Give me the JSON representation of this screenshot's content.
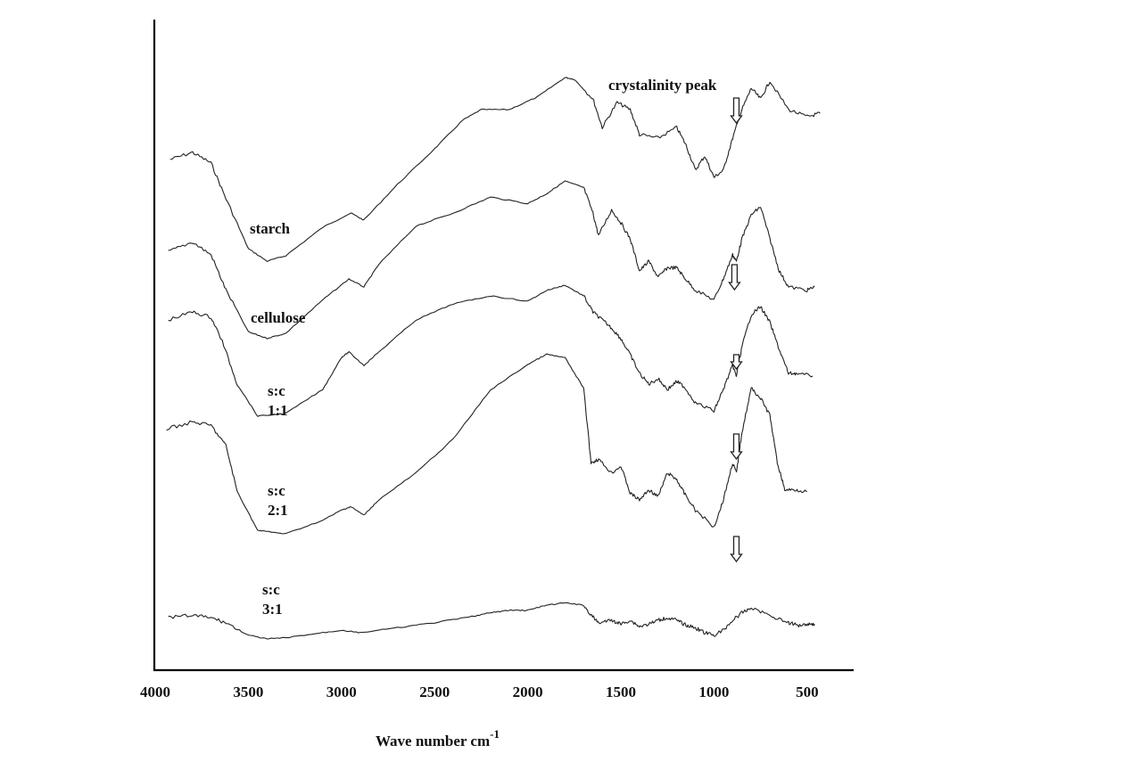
{
  "chart_data": {
    "type": "line",
    "title": "",
    "xlabel": "Wave number cm",
    "xlabel_superscript": "-1",
    "ylabel": "",
    "xlim": [
      4000,
      200
    ],
    "x_ticks": [
      "4000",
      "3500",
      "3000",
      "2500",
      "2000",
      "1500",
      "1000",
      "500"
    ],
    "annotation": "crystalinity peak",
    "series": [
      {
        "name": "starch",
        "label_lines": [
          "starch"
        ],
        "crystallinity_arrow_x": 880,
        "x": [
          3920,
          3800,
          3700,
          3620,
          3500,
          3400,
          3300,
          3100,
          2950,
          2880,
          2700,
          2500,
          2350,
          2250,
          2100,
          1950,
          1800,
          1750,
          1650,
          1600,
          1520,
          1450,
          1400,
          1300,
          1200,
          1150,
          1100,
          1050,
          1000,
          950,
          900,
          850,
          800,
          750,
          700,
          600,
          500,
          430
        ],
        "y": [
          0.72,
          0.76,
          0.7,
          0.5,
          0.22,
          0.15,
          0.18,
          0.34,
          0.42,
          0.38,
          0.58,
          0.78,
          0.94,
          1.0,
          1.0,
          1.07,
          1.18,
          1.17,
          1.06,
          0.9,
          1.04,
          1.0,
          0.86,
          0.84,
          0.9,
          0.8,
          0.66,
          0.74,
          0.62,
          0.66,
          0.84,
          1.0,
          1.12,
          1.06,
          1.16,
          1.0,
          0.96,
          0.98
        ]
      },
      {
        "name": "cellulose",
        "label_lines": [
          "cellulose"
        ],
        "crystallinity_arrow_x": 890,
        "x": [
          3930,
          3800,
          3700,
          3620,
          3500,
          3400,
          3300,
          3100,
          2960,
          2880,
          2800,
          2600,
          2400,
          2200,
          2000,
          1900,
          1800,
          1700,
          1650,
          1620,
          1550,
          1500,
          1450,
          1400,
          1350,
          1300,
          1250,
          1200,
          1160,
          1100,
          1000,
          950,
          900,
          880,
          850,
          800,
          750,
          700,
          650,
          600,
          500,
          460
        ],
        "y": [
          0.72,
          0.78,
          0.7,
          0.48,
          0.22,
          0.18,
          0.21,
          0.42,
          0.55,
          0.5,
          0.64,
          0.88,
          0.96,
          1.06,
          1.02,
          1.08,
          1.16,
          1.12,
          0.96,
          0.82,
          0.98,
          0.9,
          0.8,
          0.6,
          0.66,
          0.56,
          0.62,
          0.62,
          0.56,
          0.48,
          0.42,
          0.55,
          0.7,
          0.66,
          0.8,
          0.95,
          1.0,
          0.8,
          0.6,
          0.5,
          0.48,
          0.5
        ]
      },
      {
        "name": "s:c 1:1",
        "label_lines": [
          "s:c",
          "1:1"
        ],
        "crystallinity_arrow_x": 880,
        "x": [
          3930,
          3800,
          3700,
          3640,
          3560,
          3450,
          3300,
          3100,
          3000,
          2960,
          2880,
          2800,
          2600,
          2400,
          2200,
          2000,
          1900,
          1800,
          1700,
          1650,
          1600,
          1550,
          1500,
          1450,
          1400,
          1350,
          1300,
          1250,
          1200,
          1160,
          1100,
          1000,
          950,
          900,
          880,
          850,
          800,
          750,
          700,
          650,
          600,
          560,
          470
        ],
        "y": [
          0.92,
          0.98,
          0.94,
          0.76,
          0.44,
          0.2,
          0.22,
          0.4,
          0.64,
          0.68,
          0.58,
          0.68,
          0.92,
          1.04,
          1.1,
          1.06,
          1.14,
          1.18,
          1.1,
          0.98,
          0.92,
          0.86,
          0.78,
          0.66,
          0.52,
          0.44,
          0.48,
          0.4,
          0.46,
          0.42,
          0.3,
          0.24,
          0.4,
          0.58,
          0.5,
          0.72,
          0.96,
          1.02,
          0.9,
          0.7,
          0.52,
          0.52,
          0.5
        ]
      },
      {
        "name": "s:c 2:1",
        "label_lines": [
          "s:c",
          "2:1"
        ],
        "crystallinity_arrow_x": 880,
        "x": [
          3940,
          3800,
          3700,
          3620,
          3560,
          3450,
          3300,
          3100,
          3000,
          2950,
          2880,
          2800,
          2600,
          2400,
          2200,
          2000,
          1900,
          1800,
          1700,
          1660,
          1620,
          1550,
          1500,
          1450,
          1400,
          1350,
          1300,
          1250,
          1200,
          1160,
          1100,
          1000,
          950,
          900,
          880,
          850,
          800,
          750,
          700,
          660,
          620,
          560,
          500
        ],
        "y": [
          0.82,
          0.86,
          0.84,
          0.72,
          0.45,
          0.22,
          0.2,
          0.28,
          0.34,
          0.36,
          0.31,
          0.4,
          0.56,
          0.76,
          1.05,
          1.2,
          1.26,
          1.24,
          1.06,
          0.62,
          0.64,
          0.56,
          0.6,
          0.44,
          0.4,
          0.46,
          0.42,
          0.56,
          0.52,
          0.44,
          0.34,
          0.24,
          0.4,
          0.62,
          0.56,
          0.8,
          1.06,
          1.0,
          0.9,
          0.62,
          0.46,
          0.46,
          0.45
        ]
      },
      {
        "name": "s:c 3:1",
        "label_lines": [
          "s:c",
          "3:1"
        ],
        "crystallinity_arrow_x": 880,
        "x": [
          3930,
          3800,
          3700,
          3620,
          3500,
          3400,
          3300,
          3100,
          3000,
          2900,
          2700,
          2500,
          2300,
          2200,
          2100,
          2000,
          1900,
          1800,
          1700,
          1660,
          1620,
          1550,
          1500,
          1450,
          1400,
          1350,
          1300,
          1250,
          1200,
          1150,
          1100,
          1050,
          1000,
          950,
          900,
          850,
          800,
          700,
          600,
          550,
          500,
          460
        ],
        "y": [
          0.62,
          0.64,
          0.62,
          0.58,
          0.48,
          0.45,
          0.46,
          0.5,
          0.52,
          0.5,
          0.54,
          0.58,
          0.63,
          0.66,
          0.68,
          0.68,
          0.72,
          0.74,
          0.72,
          0.64,
          0.58,
          0.6,
          0.57,
          0.6,
          0.55,
          0.57,
          0.6,
          0.62,
          0.6,
          0.56,
          0.54,
          0.5,
          0.48,
          0.52,
          0.6,
          0.66,
          0.7,
          0.64,
          0.58,
          0.56,
          0.57,
          0.57
        ]
      }
    ]
  }
}
